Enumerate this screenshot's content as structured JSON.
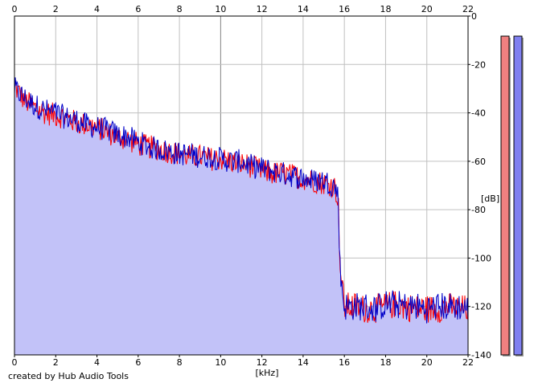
{
  "credit": "created by Hub Audio Tools",
  "colors": {
    "fill": "#c2c2f8",
    "left_channel": "#ff0000",
    "right_channel": "#0000c8",
    "grid_minor": "#c0c0c0",
    "grid_major": "#808080",
    "meter_left": "#f08080",
    "meter_right": "#8080f0"
  },
  "chart_data": {
    "type": "area",
    "title": "",
    "xlabel": "[kHz]",
    "ylabel": "[dB]",
    "xlim": [
      0,
      22
    ],
    "ylim": [
      -140,
      0
    ],
    "x_ticks": [
      0,
      2,
      4,
      6,
      8,
      10,
      12,
      14,
      16,
      18,
      20,
      22
    ],
    "x_ticks_top": [
      0,
      2,
      4,
      6,
      8,
      10,
      12,
      14,
      16,
      18,
      20,
      22
    ],
    "y_ticks": [
      0,
      -20,
      -40,
      -60,
      -80,
      -100,
      -120,
      -140
    ],
    "y_tick_labels": [
      "0",
      "-20",
      "-40",
      "-60",
      "-80",
      "-100",
      "-120",
      "-140"
    ],
    "grid": true,
    "legend": "none",
    "series": [
      {
        "channel": "left",
        "x": [
          0,
          0.5,
          1,
          1.5,
          2,
          2.5,
          3,
          3.5,
          4,
          4.5,
          5,
          5.5,
          6,
          6.5,
          7,
          7.5,
          8,
          8.5,
          9,
          9.5,
          10,
          10.5,
          11,
          11.5,
          12,
          12.5,
          13,
          13.5,
          14,
          14.5,
          15,
          15.5,
          15.7,
          15.8,
          16,
          16.5,
          17,
          17.5,
          18,
          18.5,
          19,
          19.5,
          20,
          20.5,
          21,
          21.5,
          22
        ],
        "values": [
          -29,
          -35,
          -38,
          -40,
          -41,
          -42,
          -44,
          -45,
          -46,
          -48,
          -50,
          -51,
          -53,
          -54,
          -55,
          -56,
          -57,
          -58,
          -58,
          -59,
          -59,
          -60,
          -61,
          -62,
          -64,
          -65,
          -65,
          -66,
          -67,
          -68,
          -69,
          -70,
          -75,
          -105,
          -120,
          -120,
          -121,
          -121,
          -120,
          -119,
          -120,
          -121,
          -121,
          -121,
          -120,
          -121,
          -121
        ]
      },
      {
        "channel": "right",
        "x": [
          0,
          0.5,
          1,
          1.5,
          2,
          2.5,
          3,
          3.5,
          4,
          4.5,
          5,
          5.5,
          6,
          6.5,
          7,
          7.5,
          8,
          8.5,
          9,
          9.5,
          10,
          10.5,
          11,
          11.5,
          12,
          12.5,
          13,
          13.5,
          14,
          14.5,
          15,
          15.5,
          15.7,
          15.8,
          16,
          16.5,
          17,
          17.5,
          18,
          18.5,
          19,
          19.5,
          20,
          20.5,
          21,
          21.5,
          22
        ],
        "values": [
          -30,
          -34,
          -37,
          -39,
          -40,
          -42,
          -43,
          -45,
          -46,
          -47,
          -49,
          -50,
          -52,
          -54,
          -55,
          -56,
          -57,
          -57,
          -58,
          -58,
          -59,
          -60,
          -60,
          -62,
          -63,
          -64,
          -65,
          -66,
          -67,
          -68,
          -68,
          -70,
          -74,
          -106,
          -120,
          -120,
          -120,
          -121,
          -119,
          -119,
          -120,
          -120,
          -121,
          -120,
          -120,
          -120,
          -121
        ]
      }
    ],
    "level_meters": [
      {
        "channel": "left",
        "level": 1.0
      },
      {
        "channel": "right",
        "level": 1.0
      }
    ]
  }
}
